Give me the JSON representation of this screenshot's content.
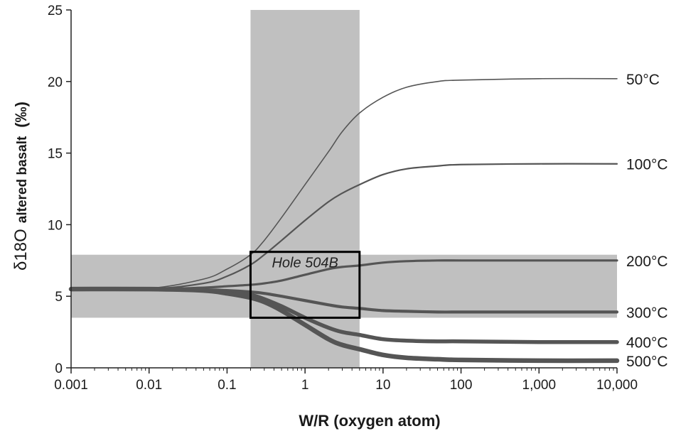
{
  "chart_data": {
    "type": "line",
    "title": "",
    "xlabel": "W/R (oxygen atom)",
    "ylabel_main": "δ18O",
    "ylabel_sub": "altered basalt",
    "ylabel_unit": "(‰)",
    "x_scale": "log",
    "xlim": [
      0.001,
      10000
    ],
    "ylim": [
      0,
      25
    ],
    "x_ticks": [
      0.001,
      0.01,
      0.1,
      1,
      10,
      100,
      1000,
      10000
    ],
    "x_tick_labels": [
      "0.001",
      "0.01",
      "0.1",
      "1",
      "10",
      "100",
      "1,000",
      "10,000"
    ],
    "y_ticks": [
      0,
      5,
      10,
      15,
      20,
      25
    ],
    "y_tick_labels": [
      "0",
      "5",
      "10",
      "15",
      "20",
      "25"
    ],
    "grid": false,
    "legend": "labels at right end of each line",
    "colors": {
      "line": "#555555",
      "shade": "#c0c0c0",
      "box": "#000000"
    },
    "shaded_bands": [
      {
        "orientation": "vertical",
        "x_range": [
          0.2,
          5
        ]
      },
      {
        "orientation": "horizontal",
        "y_range": [
          3.5,
          7.9
        ]
      }
    ],
    "annotation_box": {
      "label": "Hole 504B",
      "x_range": [
        0.2,
        5
      ],
      "y_range": [
        3.5,
        8.1
      ]
    },
    "x": [
      0.001,
      0.01,
      0.05,
      0.1,
      0.2,
      0.3,
      0.5,
      1,
      2,
      3,
      5,
      10,
      20,
      50,
      100,
      1000,
      10000
    ],
    "series": [
      {
        "name": "50°C",
        "linewidth": 1.6,
        "values": [
          5.5,
          5.55,
          6.2,
          6.9,
          7.9,
          8.9,
          10.5,
          12.8,
          15.1,
          16.5,
          17.8,
          18.9,
          19.6,
          20.0,
          20.1,
          20.2,
          20.2
        ]
      },
      {
        "name": "100°C",
        "linewidth": 2.2,
        "values": [
          5.5,
          5.5,
          5.9,
          6.4,
          7.2,
          7.9,
          8.9,
          10.3,
          11.6,
          12.2,
          12.8,
          13.5,
          13.9,
          14.1,
          14.2,
          14.25,
          14.25
        ]
      },
      {
        "name": "200°C",
        "linewidth": 3.2,
        "values": [
          5.5,
          5.5,
          5.6,
          5.7,
          5.8,
          5.9,
          6.1,
          6.5,
          6.9,
          7.05,
          7.15,
          7.35,
          7.45,
          7.5,
          7.5,
          7.5,
          7.5
        ]
      },
      {
        "name": "300°C",
        "linewidth": 4.2,
        "values": [
          5.5,
          5.5,
          5.45,
          5.4,
          5.3,
          5.2,
          5.0,
          4.7,
          4.4,
          4.25,
          4.15,
          4.0,
          3.95,
          3.9,
          3.9,
          3.9,
          3.9
        ]
      },
      {
        "name": "400°C",
        "linewidth": 5.5,
        "values": [
          5.5,
          5.5,
          5.4,
          5.3,
          5.1,
          4.8,
          4.3,
          3.5,
          2.8,
          2.5,
          2.3,
          2.0,
          1.9,
          1.85,
          1.85,
          1.8,
          1.8
        ]
      },
      {
        "name": "500°C",
        "linewidth": 6.5,
        "values": [
          5.5,
          5.5,
          5.4,
          5.2,
          4.9,
          4.6,
          4.0,
          3.0,
          2.0,
          1.6,
          1.3,
          0.9,
          0.7,
          0.6,
          0.55,
          0.5,
          0.5
        ]
      }
    ]
  }
}
